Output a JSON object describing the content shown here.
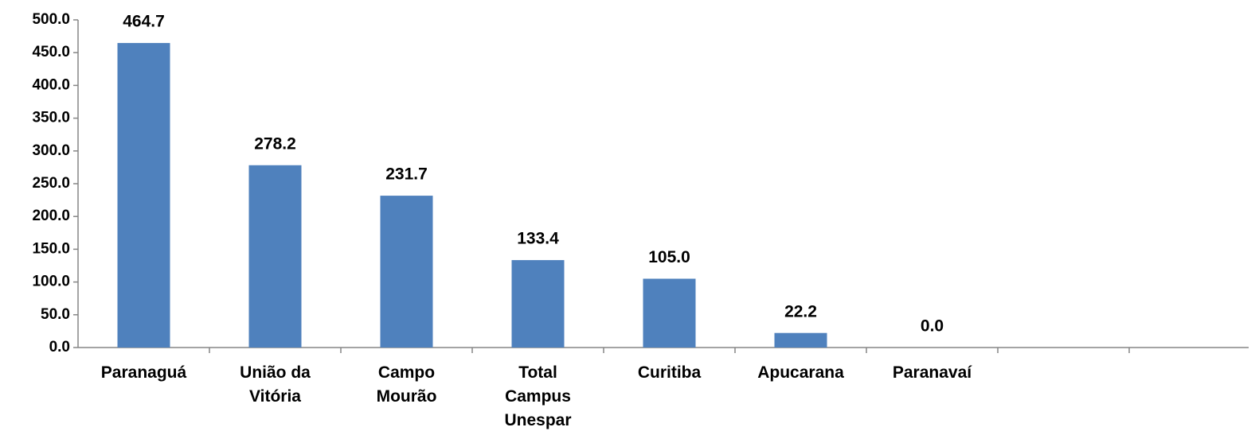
{
  "chart_data": {
    "type": "bar",
    "categories": [
      "Paranaguá",
      "União da Vitória",
      "Campo Mourão",
      "Total Campus Unespar",
      "Curitiba",
      "Apucarana",
      "Paranavaí",
      null,
      null
    ],
    "values": [
      464.7,
      278.2,
      231.7,
      133.4,
      105.0,
      22.2,
      0.0,
      null,
      null
    ],
    "value_labels": [
      "464.7",
      "278.2",
      "231.7",
      "133.4",
      "105.0",
      "22.2",
      "0.0",
      null,
      null
    ],
    "color": "#4f81bd",
    "ylim": [
      0,
      500
    ],
    "yticks": [
      {
        "value": 0,
        "label": "0.0"
      },
      {
        "value": 50,
        "label": "50.0"
      },
      {
        "value": 100,
        "label": "100.0"
      },
      {
        "value": 150,
        "label": "150.0"
      },
      {
        "value": 200,
        "label": "200.0"
      },
      {
        "value": 250,
        "label": "250.0"
      },
      {
        "value": 300,
        "label": "300.0"
      },
      {
        "value": 350,
        "label": "350.0"
      },
      {
        "value": 400,
        "label": "400.0"
      },
      {
        "value": 450,
        "label": "450.0"
      },
      {
        "value": 500,
        "label": "500.0"
      }
    ],
    "grid": false
  }
}
